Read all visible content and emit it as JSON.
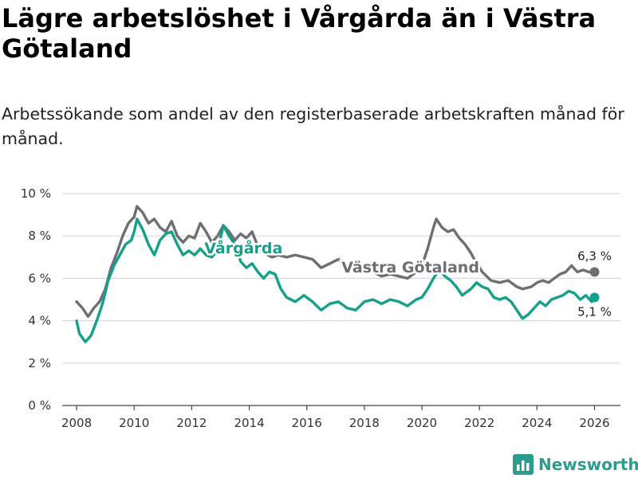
{
  "title": "Lägre arbetslöshet i Vårgårda än i Västra Götaland",
  "subtitle": "Arbetssökande som andel av den registerbaserade arbetskraften månad för månad.",
  "brand": {
    "name": "Newsworthy"
  },
  "colors": {
    "vargarda": "#15a08a",
    "vastra": "#6e6e73",
    "grid": "#d9d9d9",
    "brand": "#2a9d8f"
  },
  "chart_data": {
    "type": "line",
    "title": "Lägre arbetslöshet i Vårgårda än i Västra Götaland",
    "xlabel": "",
    "ylabel": "",
    "xlim": [
      2007.5,
      2026.9
    ],
    "ylim": [
      0,
      10
    ],
    "x_ticks": [
      2008,
      2010,
      2012,
      2014,
      2016,
      2018,
      2020,
      2022,
      2024,
      2026
    ],
    "x_tick_labels": [
      "2008",
      "2010",
      "2012",
      "2014",
      "2016",
      "2018",
      "2020",
      "2022",
      "2024",
      "2026"
    ],
    "y_ticks": [
      0,
      2,
      4,
      6,
      8,
      10
    ],
    "y_tick_labels": [
      "0 %",
      "2 %",
      "4 %",
      "6 %",
      "8 %",
      "10 %"
    ],
    "series": [
      {
        "name": "Västra Götaland",
        "color": "#6e6e73",
        "label": "Västra Götaland",
        "end_label": "6,3 %",
        "points": [
          [
            2008.0,
            4.9
          ],
          [
            2008.2,
            4.6
          ],
          [
            2008.4,
            4.2
          ],
          [
            2008.6,
            4.6
          ],
          [
            2008.8,
            4.9
          ],
          [
            2009.0,
            5.5
          ],
          [
            2009.2,
            6.5
          ],
          [
            2009.4,
            7.2
          ],
          [
            2009.6,
            8.0
          ],
          [
            2009.8,
            8.6
          ],
          [
            2010.0,
            8.9
          ],
          [
            2010.1,
            9.4
          ],
          [
            2010.3,
            9.1
          ],
          [
            2010.5,
            8.6
          ],
          [
            2010.7,
            8.8
          ],
          [
            2010.9,
            8.4
          ],
          [
            2011.1,
            8.2
          ],
          [
            2011.3,
            8.7
          ],
          [
            2011.5,
            8.0
          ],
          [
            2011.7,
            7.7
          ],
          [
            2011.9,
            8.0
          ],
          [
            2012.1,
            7.9
          ],
          [
            2012.3,
            8.6
          ],
          [
            2012.5,
            8.2
          ],
          [
            2012.7,
            7.7
          ],
          [
            2012.9,
            8.0
          ],
          [
            2013.1,
            8.5
          ],
          [
            2013.3,
            8.2
          ],
          [
            2013.5,
            7.8
          ],
          [
            2013.7,
            8.1
          ],
          [
            2013.9,
            7.9
          ],
          [
            2014.1,
            8.2
          ],
          [
            2014.3,
            7.5
          ],
          [
            2014.5,
            7.2
          ],
          [
            2014.8,
            7.0
          ],
          [
            2015.0,
            7.1
          ],
          [
            2015.3,
            7.0
          ],
          [
            2015.6,
            7.1
          ],
          [
            2015.9,
            7.0
          ],
          [
            2016.2,
            6.9
          ],
          [
            2016.5,
            6.5
          ],
          [
            2016.8,
            6.7
          ],
          [
            2017.1,
            6.9
          ],
          [
            2017.4,
            6.5
          ],
          [
            2017.7,
            6.6
          ],
          [
            2018.0,
            6.6
          ],
          [
            2018.3,
            6.3
          ],
          [
            2018.6,
            6.1
          ],
          [
            2018.9,
            6.2
          ],
          [
            2019.2,
            6.1
          ],
          [
            2019.5,
            6.0
          ],
          [
            2019.8,
            6.3
          ],
          [
            2020.0,
            6.6
          ],
          [
            2020.2,
            7.4
          ],
          [
            2020.4,
            8.4
          ],
          [
            2020.5,
            8.8
          ],
          [
            2020.7,
            8.4
          ],
          [
            2020.9,
            8.2
          ],
          [
            2021.1,
            8.3
          ],
          [
            2021.3,
            7.9
          ],
          [
            2021.5,
            7.6
          ],
          [
            2021.7,
            7.2
          ],
          [
            2021.9,
            6.7
          ],
          [
            2022.1,
            6.3
          ],
          [
            2022.4,
            5.9
          ],
          [
            2022.7,
            5.8
          ],
          [
            2023.0,
            5.9
          ],
          [
            2023.3,
            5.6
          ],
          [
            2023.5,
            5.5
          ],
          [
            2023.8,
            5.6
          ],
          [
            2024.0,
            5.8
          ],
          [
            2024.2,
            5.9
          ],
          [
            2024.4,
            5.8
          ],
          [
            2024.6,
            6.0
          ],
          [
            2024.8,
            6.2
          ],
          [
            2025.0,
            6.3
          ],
          [
            2025.2,
            6.6
          ],
          [
            2025.4,
            6.3
          ],
          [
            2025.6,
            6.4
          ],
          [
            2025.8,
            6.3
          ],
          [
            2026.0,
            6.3
          ]
        ]
      },
      {
        "name": "Vårgårda",
        "color": "#15a08a",
        "label": "Vårgårda",
        "end_label": "5,1 %",
        "points": [
          [
            2008.0,
            4.0
          ],
          [
            2008.1,
            3.4
          ],
          [
            2008.3,
            3.0
          ],
          [
            2008.5,
            3.3
          ],
          [
            2008.7,
            4.0
          ],
          [
            2008.9,
            4.8
          ],
          [
            2009.1,
            5.9
          ],
          [
            2009.3,
            6.6
          ],
          [
            2009.5,
            7.1
          ],
          [
            2009.7,
            7.6
          ],
          [
            2009.9,
            7.8
          ],
          [
            2010.0,
            8.2
          ],
          [
            2010.1,
            8.8
          ],
          [
            2010.3,
            8.3
          ],
          [
            2010.5,
            7.6
          ],
          [
            2010.7,
            7.1
          ],
          [
            2010.9,
            7.8
          ],
          [
            2011.1,
            8.1
          ],
          [
            2011.3,
            8.2
          ],
          [
            2011.5,
            7.6
          ],
          [
            2011.7,
            7.1
          ],
          [
            2011.9,
            7.3
          ],
          [
            2012.1,
            7.1
          ],
          [
            2012.3,
            7.4
          ],
          [
            2012.5,
            7.1
          ],
          [
            2012.7,
            7.0
          ],
          [
            2012.9,
            7.3
          ],
          [
            2013.0,
            7.9
          ],
          [
            2013.1,
            8.5
          ],
          [
            2013.3,
            8.0
          ],
          [
            2013.5,
            7.6
          ],
          [
            2013.7,
            6.8
          ],
          [
            2013.9,
            6.5
          ],
          [
            2014.1,
            6.7
          ],
          [
            2014.3,
            6.3
          ],
          [
            2014.5,
            6.0
          ],
          [
            2014.7,
            6.3
          ],
          [
            2014.9,
            6.2
          ],
          [
            2015.1,
            5.5
          ],
          [
            2015.3,
            5.1
          ],
          [
            2015.6,
            4.9
          ],
          [
            2015.9,
            5.2
          ],
          [
            2016.2,
            4.9
          ],
          [
            2016.5,
            4.5
          ],
          [
            2016.8,
            4.8
          ],
          [
            2017.1,
            4.9
          ],
          [
            2017.4,
            4.6
          ],
          [
            2017.7,
            4.5
          ],
          [
            2018.0,
            4.9
          ],
          [
            2018.3,
            5.0
          ],
          [
            2018.6,
            4.8
          ],
          [
            2018.9,
            5.0
          ],
          [
            2019.2,
            4.9
          ],
          [
            2019.5,
            4.7
          ],
          [
            2019.8,
            5.0
          ],
          [
            2020.0,
            5.1
          ],
          [
            2020.2,
            5.5
          ],
          [
            2020.4,
            6.0
          ],
          [
            2020.6,
            6.4
          ],
          [
            2020.8,
            6.1
          ],
          [
            2021.0,
            5.9
          ],
          [
            2021.2,
            5.6
          ],
          [
            2021.4,
            5.2
          ],
          [
            2021.7,
            5.5
          ],
          [
            2021.9,
            5.8
          ],
          [
            2022.1,
            5.6
          ],
          [
            2022.3,
            5.5
          ],
          [
            2022.5,
            5.1
          ],
          [
            2022.7,
            5.0
          ],
          [
            2022.9,
            5.1
          ],
          [
            2023.1,
            4.9
          ],
          [
            2023.3,
            4.5
          ],
          [
            2023.5,
            4.1
          ],
          [
            2023.7,
            4.3
          ],
          [
            2023.9,
            4.6
          ],
          [
            2024.1,
            4.9
          ],
          [
            2024.3,
            4.7
          ],
          [
            2024.5,
            5.0
          ],
          [
            2024.7,
            5.1
          ],
          [
            2024.9,
            5.2
          ],
          [
            2025.1,
            5.4
          ],
          [
            2025.3,
            5.3
          ],
          [
            2025.5,
            5.0
          ],
          [
            2025.7,
            5.2
          ],
          [
            2025.9,
            4.9
          ],
          [
            2026.0,
            5.1
          ]
        ]
      }
    ]
  }
}
